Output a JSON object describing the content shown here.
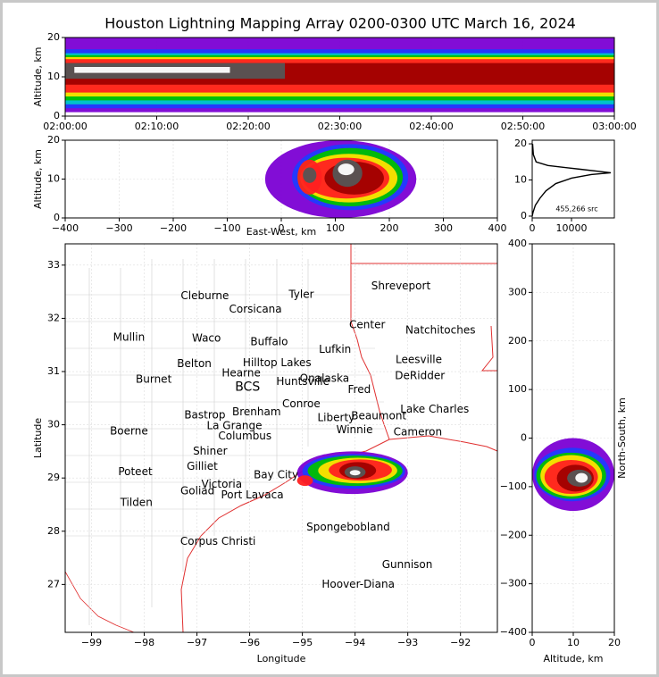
{
  "chart_data": [
    {
      "type": "heatmap",
      "shape": "band",
      "title": "Houston Lightning Mapping Array 0200-0300 UTC March 16, 2024",
      "ylabel": "Altitude, km",
      "xlim": [
        0,
        60
      ],
      "ylim": [
        0,
        20
      ],
      "xticks": [
        {
          "value": 0,
          "label": "02:00:00"
        },
        {
          "value": 10,
          "label": "02:10:00"
        },
        {
          "value": 20,
          "label": "02:20:00"
        },
        {
          "value": 30,
          "label": "02:30:00"
        },
        {
          "value": 40,
          "label": "02:40:00"
        },
        {
          "value": 50,
          "label": "02:50:00"
        },
        {
          "value": 60,
          "label": "03:00:00"
        }
      ],
      "yticks": [
        0,
        10,
        20
      ],
      "regions": [
        {
          "color": "#7b00d4",
          "x": [
            0,
            60
          ],
          "y": [
            1,
            20
          ]
        },
        {
          "color": "#1f3cff",
          "x": [
            0,
            60
          ],
          "y": [
            2,
            17
          ]
        },
        {
          "color": "#00c8c8",
          "x": [
            0,
            60
          ],
          "y": [
            3,
            16
          ]
        },
        {
          "color": "#00c000",
          "x": [
            0,
            60
          ],
          "y": [
            4,
            15.5
          ]
        },
        {
          "color": "#ffe000",
          "x": [
            0,
            60
          ],
          "y": [
            5,
            15
          ]
        },
        {
          "color": "#ff2020",
          "x": [
            0,
            60
          ],
          "y": [
            6,
            14.5
          ]
        },
        {
          "color": "#a00000",
          "x": [
            0,
            60
          ],
          "y": [
            8,
            13.5
          ]
        },
        {
          "color": "#555555",
          "x": [
            0,
            24
          ],
          "y": [
            9.5,
            13.5
          ]
        },
        {
          "color": "#ffffff",
          "x": [
            1,
            18
          ],
          "y": [
            11,
            12.5
          ]
        }
      ]
    },
    {
      "type": "heatmap",
      "shape": "blob",
      "xlabel": "East-West, km",
      "ylabel": "Altitude, km",
      "xlim": [
        -400,
        400
      ],
      "ylim": [
        0,
        20
      ],
      "xticks": [
        {
          "value": -400,
          "label": "−400"
        },
        {
          "value": -300,
          "label": "−300"
        },
        {
          "value": -200,
          "label": "−200"
        },
        {
          "value": -100,
          "label": "−100"
        },
        0,
        100,
        200,
        300,
        400
      ],
      "yticks": [
        0,
        10,
        20
      ],
      "regions": [
        {
          "color": "#7b00d4",
          "x": [
            -30,
            250
          ],
          "y": [
            0,
            20
          ]
        },
        {
          "color": "#1f3cff",
          "x": [
            20,
            235
          ],
          "y": [
            2,
            19
          ]
        },
        {
          "color": "#00c000",
          "x": [
            30,
            225
          ],
          "y": [
            3,
            18
          ]
        },
        {
          "color": "#ffe000",
          "x": [
            35,
            215
          ],
          "y": [
            4,
            16.5
          ]
        },
        {
          "color": "#ff2020",
          "x": [
            40,
            200
          ],
          "y": [
            5,
            15.5
          ]
        },
        {
          "color": "#a00000",
          "x": [
            80,
            190
          ],
          "y": [
            6,
            14.5
          ]
        },
        {
          "color": "#555555",
          "x": [
            95,
            150
          ],
          "y": [
            8,
            15
          ]
        },
        {
          "color": "#ffffff",
          "x": [
            105,
            135
          ],
          "y": [
            11,
            14
          ]
        },
        {
          "color": "#ff2020",
          "x": [
            30,
            75
          ],
          "y": [
            6,
            15
          ]
        },
        {
          "color": "#555555",
          "x": [
            40,
            65
          ],
          "y": [
            9,
            13
          ]
        }
      ]
    },
    {
      "type": "line",
      "xlim": [
        0,
        20900
      ],
      "ylim": [
        -0.5,
        21
      ],
      "xticks": [
        0,
        10000
      ],
      "yticks": [
        0,
        10,
        20
      ],
      "annotation": "455,266 src",
      "x": [
        0,
        200,
        800,
        2000,
        3500,
        6000,
        10000,
        15000,
        20000,
        12000,
        4000,
        1000,
        300,
        100
      ],
      "y": [
        0,
        1,
        3,
        5,
        7,
        9,
        10.5,
        11.5,
        12,
        13,
        14,
        15,
        17,
        20
      ],
      "color": "#000000"
    },
    {
      "type": "map",
      "xlabel": "Longitude",
      "ylabel": "Latitude",
      "xlim": [
        -99.5,
        -91.3
      ],
      "ylim": [
        26.1,
        33.4
      ],
      "xticks": [
        {
          "value": -99,
          "label": "−99"
        },
        {
          "value": -98,
          "label": "−98"
        },
        {
          "value": -97,
          "label": "−97"
        },
        {
          "value": -96,
          "label": "−96"
        },
        {
          "value": -95,
          "label": "−95"
        },
        {
          "value": -94,
          "label": "−94"
        },
        {
          "value": -93,
          "label": "−93"
        },
        {
          "value": -92,
          "label": "−92"
        }
      ],
      "yticks": [
        27,
        28,
        29,
        30,
        31,
        32,
        33
      ],
      "regions": [
        {
          "color": "#7b00d4",
          "x": [
            -95.1,
            -93.0
          ],
          "y": [
            28.7,
            29.5
          ]
        },
        {
          "color": "#1f3cff",
          "x": [
            -95.0,
            -93.05
          ],
          "y": [
            28.8,
            29.45
          ]
        },
        {
          "color": "#00c000",
          "x": [
            -94.9,
            -93.1
          ],
          "y": [
            28.85,
            29.42
          ]
        },
        {
          "color": "#ffe000",
          "x": [
            -94.7,
            -93.2
          ],
          "y": [
            28.9,
            29.38
          ]
        },
        {
          "color": "#ff2020",
          "x": [
            -94.5,
            -93.3
          ],
          "y": [
            28.95,
            29.35
          ]
        },
        {
          "color": "#a00000",
          "x": [
            -94.3,
            -93.6
          ],
          "y": [
            28.98,
            29.3
          ]
        },
        {
          "color": "#555555",
          "x": [
            -94.2,
            -93.8
          ],
          "y": [
            29.0,
            29.22
          ]
        },
        {
          "color": "#ffffff",
          "x": [
            -94.1,
            -93.9
          ],
          "y": [
            29.05,
            29.15
          ]
        },
        {
          "color": "#ff2020",
          "x": [
            -95.1,
            -94.8
          ],
          "y": [
            28.85,
            29.05
          ]
        }
      ],
      "points": [
        {
          "label": "Cleburne",
          "x": -96.85,
          "y": 32.42,
          "color": "#000000"
        },
        {
          "label": "Tyler",
          "x": -95.02,
          "y": 32.44,
          "color": "#000000"
        },
        {
          "label": "Shreveport",
          "x": -93.13,
          "y": 32.6,
          "color": "#000000"
        },
        {
          "label": "Corsicana",
          "x": -95.89,
          "y": 32.17,
          "color": "#000000"
        },
        {
          "label": "Mullin",
          "x": -98.29,
          "y": 31.64,
          "color": "#f4a460"
        },
        {
          "label": "Waco",
          "x": -96.82,
          "y": 31.62,
          "color": "#000000"
        },
        {
          "label": "Buffalo",
          "x": -95.63,
          "y": 31.55,
          "color": "#000000"
        },
        {
          "label": "Center",
          "x": -93.77,
          "y": 31.87,
          "color": "#000000"
        },
        {
          "label": "Natchitoches",
          "x": -92.38,
          "y": 31.77,
          "color": "#000000"
        },
        {
          "label": "Lufkin",
          "x": -94.38,
          "y": 31.41,
          "color": "#000000"
        },
        {
          "label": "Belton",
          "x": -97.05,
          "y": 31.14,
          "color": "#000000"
        },
        {
          "label": "Hilltop Lakes",
          "x": -95.48,
          "y": 31.16,
          "color": "#000000"
        },
        {
          "label": "Leesville",
          "x": -92.79,
          "y": 31.22,
          "color": "#000000"
        },
        {
          "label": "Hearne",
          "x": -96.16,
          "y": 30.97,
          "color": "#000000"
        },
        {
          "label": "DeRidder",
          "x": -92.77,
          "y": 30.92,
          "color": "#000000"
        },
        {
          "label": "Burnet",
          "x": -97.82,
          "y": 30.85,
          "color": "#000000"
        },
        {
          "label": "Huntsville",
          "x": -94.99,
          "y": 30.81,
          "color": "#000000"
        },
        {
          "label": "Onalaska",
          "x": -94.58,
          "y": 30.87,
          "color": "#000000"
        },
        {
          "label": "BCS",
          "x": -96.04,
          "y": 30.71,
          "color": "#8b0000"
        },
        {
          "label": "Fred",
          "x": -93.92,
          "y": 30.66,
          "color": "#000000"
        },
        {
          "label": "Conroe",
          "x": -95.02,
          "y": 30.39,
          "color": "#000000"
        },
        {
          "label": "Lake Charles",
          "x": -92.49,
          "y": 30.29,
          "color": "#000000"
        },
        {
          "label": "Bastrop",
          "x": -96.85,
          "y": 30.18,
          "color": "#000000"
        },
        {
          "label": "Brenham",
          "x": -95.87,
          "y": 30.24,
          "color": "#000000"
        },
        {
          "label": "Liberty",
          "x": -94.36,
          "y": 30.13,
          "color": "#000000"
        },
        {
          "label": "Beaumont",
          "x": -93.55,
          "y": 30.16,
          "color": "#000000"
        },
        {
          "label": "La Grange",
          "x": -96.29,
          "y": 29.98,
          "color": "#000000"
        },
        {
          "label": "Boerne",
          "x": -98.29,
          "y": 29.88,
          "color": "#000000"
        },
        {
          "label": "Winnie",
          "x": -94.01,
          "y": 29.9,
          "color": "#000000"
        },
        {
          "label": "Cameron",
          "x": -92.81,
          "y": 29.86,
          "color": "#000000"
        },
        {
          "label": "Columbus",
          "x": -96.09,
          "y": 29.78,
          "color": "#000000"
        },
        {
          "label": "Shiner",
          "x": -96.75,
          "y": 29.5,
          "color": "#000000"
        },
        {
          "label": "Gilliet",
          "x": -96.9,
          "y": 29.21,
          "color": "#000000"
        },
        {
          "label": "Poteet",
          "x": -98.17,
          "y": 29.11,
          "color": "#000000"
        },
        {
          "label": "Bay City",
          "x": -95.5,
          "y": 29.05,
          "color": "#000000"
        },
        {
          "label": "Victoria",
          "x": -96.53,
          "y": 28.88,
          "color": "#000000"
        },
        {
          "label": "Goliad",
          "x": -96.99,
          "y": 28.75,
          "color": "#000000"
        },
        {
          "label": "Port Lavaca",
          "x": -95.95,
          "y": 28.68,
          "color": "#000000"
        },
        {
          "label": "Tilden",
          "x": -98.15,
          "y": 28.53,
          "color": "#000000"
        },
        {
          "label": "Spongebobland",
          "x": -94.13,
          "y": 28.07,
          "color": "#0000dd"
        },
        {
          "label": "Corpus Christi",
          "x": -96.6,
          "y": 27.8,
          "color": "#000000"
        },
        {
          "label": "Gunnison",
          "x": -93.01,
          "y": 27.37,
          "color": "#0000dd"
        },
        {
          "label": "Hoover-Diana",
          "x": -93.94,
          "y": 27.0,
          "color": "#0000dd"
        }
      ]
    },
    {
      "type": "heatmap",
      "shape": "blob",
      "xlabel": "Altitude, km",
      "ylabel": "North-South, km",
      "xlim": [
        0,
        20
      ],
      "ylim": [
        -400,
        400
      ],
      "xticks": [
        0,
        10,
        20
      ],
      "yticks": [
        {
          "value": -400,
          "label": "−400"
        },
        {
          "value": -300,
          "label": "−300"
        },
        {
          "value": -200,
          "label": "−200"
        },
        {
          "value": -100,
          "label": "−100"
        },
        0,
        100,
        200,
        300,
        400
      ],
      "regions": [
        {
          "color": "#7b00d4",
          "x": [
            0,
            20
          ],
          "y": [
            -150,
            0
          ]
        },
        {
          "color": "#1f3cff",
          "x": [
            0.5,
            19
          ],
          "y": [
            -130,
            -20
          ]
        },
        {
          "color": "#00c000",
          "x": [
            1,
            18
          ],
          "y": [
            -125,
            -30
          ]
        },
        {
          "color": "#ffe000",
          "x": [
            2,
            17
          ],
          "y": [
            -120,
            -35
          ]
        },
        {
          "color": "#ff2020",
          "x": [
            3,
            16
          ],
          "y": [
            -115,
            -45
          ]
        },
        {
          "color": "#a00000",
          "x": [
            6,
            15
          ],
          "y": [
            -110,
            -55
          ]
        },
        {
          "color": "#555555",
          "x": [
            8.5,
            14.5
          ],
          "y": [
            -100,
            -65
          ]
        },
        {
          "color": "#ffffff",
          "x": [
            10.5,
            13.5
          ],
          "y": [
            -92,
            -72
          ]
        }
      ]
    }
  ]
}
